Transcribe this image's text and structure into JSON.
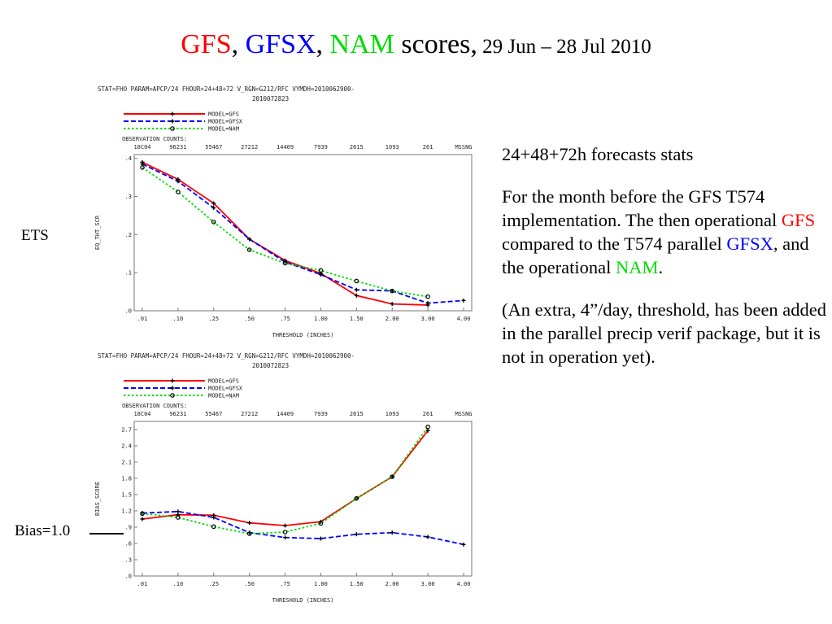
{
  "slide": {
    "title": {
      "gfs": "GFS",
      "sep1": ", ",
      "gfsx": "GFSX",
      "sep2": ", ",
      "nam": "NAM",
      "scores": " scores,",
      "dates": " 29 Jun – 28 Jul 2010"
    },
    "side_labels": {
      "ets": "ETS",
      "bias": "Bias=1.0"
    },
    "notes": {
      "p1": "24+48+72h forecasts stats",
      "p2_a": "For the month before the GFS T574 implementation. The then operational ",
      "p2_gfs": "GFS",
      "p2_b": " compared to the T574 parallel ",
      "p2_gfsx": "GFSX",
      "p2_c": ", and the operational ",
      "p2_nam": "NAM",
      "p2_d": ".",
      "p3": "(An extra, 4”/day, threshold, has been added in the parallel precip verif package, but it is not in operation yet)."
    },
    "colors": {
      "gfs": "#ff0000",
      "gfsx": "#0000ff",
      "nam": "#00dd00",
      "axis": "#777777"
    }
  },
  "chart_data": [
    {
      "type": "line",
      "header": [
        "STAT=FHO PARAM=APCP/24 FHOUR=24+48+72 V_RGN=G212/RFC VYMDH=2010062900-",
        "2010072823"
      ],
      "obs_label": "OBSERVATION COUNTS:",
      "obs_counts": [
        "18C04",
        "96231",
        "55467",
        "27212",
        "14409",
        "7939",
        "2615",
        "1093",
        "261",
        "MSSNG"
      ],
      "xlabel": "THRESHOLD (INCHES)",
      "ylabel": "EQ_THT_SCR",
      "categories": [
        ".01",
        ".10",
        ".25",
        ".50",
        ".75",
        "1.00",
        "1.50",
        "2.00",
        "3.00",
        "4.00"
      ],
      "yticks": [
        ".0",
        ".1",
        ".2",
        ".3",
        ".4"
      ],
      "ylim": [
        0,
        0.41
      ],
      "series": [
        {
          "name": "MODEL=GFS",
          "color": "#ff0000",
          "dash": "solid",
          "marker": "plus",
          "values": [
            0.39,
            0.345,
            0.282,
            0.188,
            0.132,
            0.098,
            0.04,
            0.018,
            0.015,
            null
          ]
        },
        {
          "name": "MODEL=GFSX",
          "color": "#0000ff",
          "dash": "dashed",
          "marker": "plus",
          "values": [
            0.385,
            0.34,
            0.27,
            0.188,
            0.128,
            0.095,
            0.055,
            0.052,
            0.02,
            0.027
          ]
        },
        {
          "name": "MODEL=NAM",
          "color": "#00dd00",
          "dash": "dotted",
          "marker": "circle",
          "values": [
            0.376,
            0.312,
            0.233,
            0.16,
            0.125,
            0.106,
            0.078,
            0.052,
            0.037,
            null
          ]
        }
      ]
    },
    {
      "type": "line",
      "header": [
        "STAT=FHO PARAM=APCP/24 FHOUR=24+48+72 V_RGN=G212/RFC VYMDH=2010062900-",
        "2010072823"
      ],
      "obs_label": "OBSERVATION COUNTS:",
      "obs_counts": [
        "18C04",
        "96231",
        "55467",
        "27212",
        "14409",
        "7939",
        "2615",
        "1093",
        "261",
        "MSSNG"
      ],
      "xlabel": "THRESHOLD (INCHES)",
      "ylabel": "BIAS_SCORE",
      "categories": [
        ".01",
        ".10",
        ".25",
        ".50",
        ".75",
        "1.00",
        "1.50",
        "2.00",
        "3.00",
        "4.00"
      ],
      "yticks": [
        ".0",
        ".3",
        ".6",
        ".9",
        "1.2",
        "1.5",
        "1.8",
        "2.1",
        "2.4",
        "2.7"
      ],
      "ylim": [
        0,
        2.85
      ],
      "series": [
        {
          "name": "MODEL=GFS",
          "color": "#ff0000",
          "dash": "solid",
          "marker": "plus",
          "values": [
            1.05,
            1.13,
            1.12,
            0.98,
            0.93,
            1.0,
            1.43,
            1.83,
            2.68,
            null
          ]
        },
        {
          "name": "MODEL=GFSX",
          "color": "#0000ff",
          "dash": "dashed",
          "marker": "plus",
          "values": [
            1.16,
            1.19,
            1.08,
            0.8,
            0.71,
            0.69,
            0.77,
            0.8,
            0.72,
            0.58
          ]
        },
        {
          "name": "MODEL=NAM",
          "color": "#00dd00",
          "dash": "dotted",
          "marker": "circle",
          "values": [
            1.15,
            1.08,
            0.91,
            0.78,
            0.81,
            0.97,
            1.43,
            1.83,
            2.75,
            null
          ]
        }
      ]
    }
  ]
}
